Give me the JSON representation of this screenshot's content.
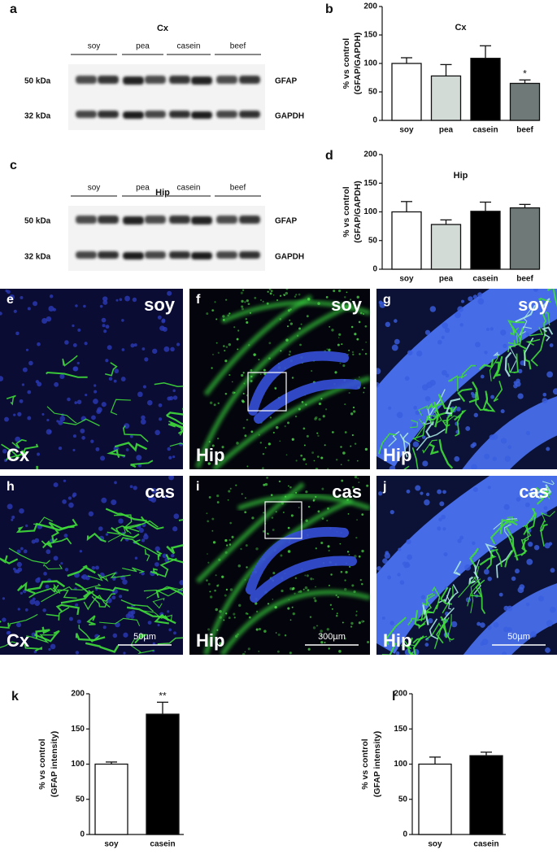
{
  "panels": {
    "a": {
      "letter": "a",
      "title": "Cx",
      "lanes": [
        "soy",
        "pea",
        "casein",
        "beef"
      ],
      "markers": [
        "50 kDa",
        "32 kDa"
      ],
      "proteins": [
        "GFAP",
        "GAPDH"
      ]
    },
    "c": {
      "letter": "c",
      "title": "Hip",
      "lanes": [
        "soy",
        "pea",
        "casein",
        "beef"
      ],
      "markers": [
        "50 kDa",
        "32 kDa"
      ],
      "proteins": [
        "GFAP",
        "GAPDH"
      ]
    }
  },
  "images": [
    {
      "letter": "e",
      "label": "soy",
      "region": "Cx"
    },
    {
      "letter": "f",
      "label": "soy",
      "region": "Hip"
    },
    {
      "letter": "g",
      "label": "soy",
      "region": "Hip"
    },
    {
      "letter": "h",
      "label": "cas",
      "region": "Cx",
      "scale": "50µm"
    },
    {
      "letter": "i",
      "label": "cas",
      "region": "Hip",
      "scale": "300µm"
    },
    {
      "letter": "j",
      "label": "cas",
      "region": "Hip",
      "scale": "50µm"
    }
  ],
  "chart_data": [
    {
      "type": "bar",
      "panel": "b",
      "title": "Cx",
      "y_label": [
        "% vs control",
        "(GFAP/GAPDH)"
      ],
      "categories": [
        "soy",
        "pea",
        "casein",
        "beef"
      ],
      "values": [
        100,
        78,
        109,
        65
      ],
      "errors": [
        10,
        20,
        22,
        6
      ],
      "colors": [
        "#ffffff",
        "#d3dbd7",
        "#000000",
        "#6f7a78"
      ],
      "annotations": [
        {
          "index": 3,
          "text": "*"
        }
      ],
      "ylim": [
        0,
        200
      ],
      "yticks": [
        0,
        50,
        100,
        150,
        200
      ]
    },
    {
      "type": "bar",
      "panel": "d",
      "title": "Hip",
      "y_label": [
        "% vs control",
        "(GFAP/GAPDH)"
      ],
      "categories": [
        "soy",
        "pea",
        "casein",
        "beef"
      ],
      "values": [
        100,
        78,
        101,
        107
      ],
      "errors": [
        18,
        8,
        16,
        6
      ],
      "colors": [
        "#ffffff",
        "#d3dbd7",
        "#000000",
        "#6f7a78"
      ],
      "ylim": [
        0,
        200
      ],
      "yticks": [
        0,
        50,
        100,
        150,
        200
      ]
    },
    {
      "type": "bar",
      "panel": "k",
      "y_label": [
        "% vs control",
        "(GFAP intensity)"
      ],
      "categories": [
        "soy",
        "casein"
      ],
      "values": [
        100,
        171
      ],
      "errors": [
        3,
        17
      ],
      "colors": [
        "#ffffff",
        "#000000"
      ],
      "annotations": [
        {
          "index": 1,
          "text": "**"
        }
      ],
      "ylim": [
        0,
        200
      ],
      "yticks": [
        0,
        50,
        100,
        150,
        200
      ]
    },
    {
      "type": "bar",
      "panel": "l",
      "y_label": [
        "% vs control",
        "(GFAP intensity)"
      ],
      "categories": [
        "soy",
        "casein"
      ],
      "values": [
        100,
        112
      ],
      "errors": [
        10,
        5
      ],
      "colors": [
        "#ffffff",
        "#000000"
      ],
      "ylim": [
        0,
        200
      ],
      "yticks": [
        0,
        50,
        100,
        150,
        200
      ]
    }
  ]
}
